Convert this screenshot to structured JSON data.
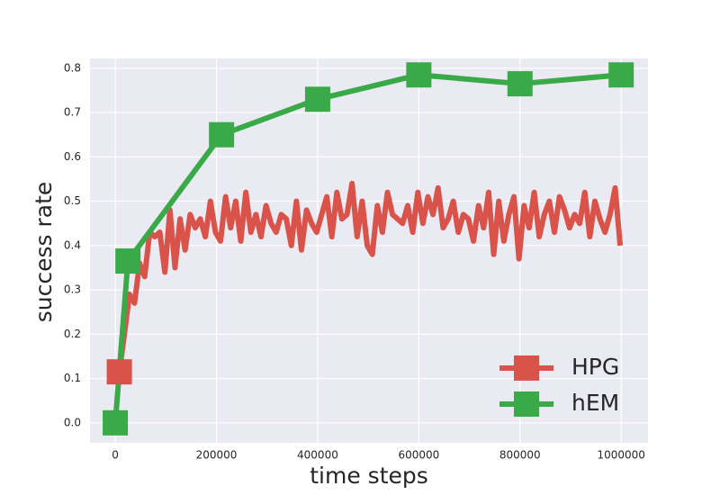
{
  "chart_data": {
    "type": "line",
    "xlabel": "time steps",
    "ylabel": "success rate",
    "xlim": [
      -50000,
      1053000
    ],
    "ylim": [
      -0.045,
      0.822
    ],
    "xticks": [
      0,
      200000,
      400000,
      600000,
      800000,
      1000000
    ],
    "yticks": [
      {
        "value": 0,
        "label": "0.0"
      },
      0.1,
      0.2,
      0.3,
      0.4,
      0.5,
      0.6,
      0.7,
      0.8
    ],
    "grid": true,
    "legend": "lower right",
    "series": [
      {
        "name": "HPG",
        "color": "#d9534a",
        "marker_indices": [
          0
        ],
        "x": [
          8000,
          18000,
          28000,
          38000,
          48000,
          58000,
          68000,
          78000,
          88000,
          98000,
          108000,
          118000,
          128000,
          138000,
          148000,
          158000,
          168000,
          178000,
          188000,
          198000,
          208000,
          218000,
          228000,
          238000,
          248000,
          258000,
          268000,
          278000,
          288000,
          298000,
          308000,
          318000,
          328000,
          338000,
          348000,
          358000,
          368000,
          378000,
          388000,
          398000,
          408000,
          418000,
          428000,
          438000,
          448000,
          458000,
          468000,
          478000,
          488000,
          498000,
          508000,
          518000,
          528000,
          538000,
          548000,
          558000,
          568000,
          578000,
          588000,
          598000,
          608000,
          618000,
          628000,
          638000,
          648000,
          658000,
          668000,
          678000,
          688000,
          698000,
          708000,
          718000,
          728000,
          738000,
          748000,
          758000,
          768000,
          778000,
          788000,
          798000,
          808000,
          818000,
          828000,
          838000,
          848000,
          858000,
          868000,
          878000,
          888000,
          898000,
          908000,
          918000,
          928000,
          938000,
          948000,
          958000,
          968000,
          978000,
          988000,
          998000
        ],
        "values": [
          0.115,
          0.2,
          0.29,
          0.27,
          0.36,
          0.33,
          0.43,
          0.42,
          0.43,
          0.34,
          0.48,
          0.35,
          0.46,
          0.39,
          0.47,
          0.44,
          0.46,
          0.42,
          0.5,
          0.43,
          0.41,
          0.51,
          0.44,
          0.5,
          0.41,
          0.52,
          0.43,
          0.47,
          0.42,
          0.49,
          0.45,
          0.43,
          0.47,
          0.46,
          0.4,
          0.5,
          0.39,
          0.48,
          0.45,
          0.43,
          0.47,
          0.51,
          0.42,
          0.52,
          0.46,
          0.47,
          0.54,
          0.42,
          0.5,
          0.4,
          0.38,
          0.49,
          0.43,
          0.52,
          0.47,
          0.46,
          0.45,
          0.49,
          0.43,
          0.52,
          0.45,
          0.51,
          0.47,
          0.53,
          0.44,
          0.46,
          0.5,
          0.43,
          0.47,
          0.46,
          0.41,
          0.49,
          0.44,
          0.52,
          0.38,
          0.5,
          0.41,
          0.47,
          0.51,
          0.37,
          0.49,
          0.44,
          0.52,
          0.42,
          0.47,
          0.5,
          0.43,
          0.51,
          0.48,
          0.44,
          0.47,
          0.45,
          0.52,
          0.42,
          0.5,
          0.46,
          0.43,
          0.47,
          0.53,
          0.4
        ]
      },
      {
        "name": "hEM",
        "color": "#3aaa48",
        "marker_indices": [
          0,
          1,
          2,
          3,
          4,
          5,
          6
        ],
        "x": [
          0,
          25000,
          210000,
          400000,
          600000,
          800000,
          1000000
        ],
        "values": [
          0.0,
          0.365,
          0.65,
          0.73,
          0.785,
          0.765,
          0.785
        ]
      }
    ]
  }
}
